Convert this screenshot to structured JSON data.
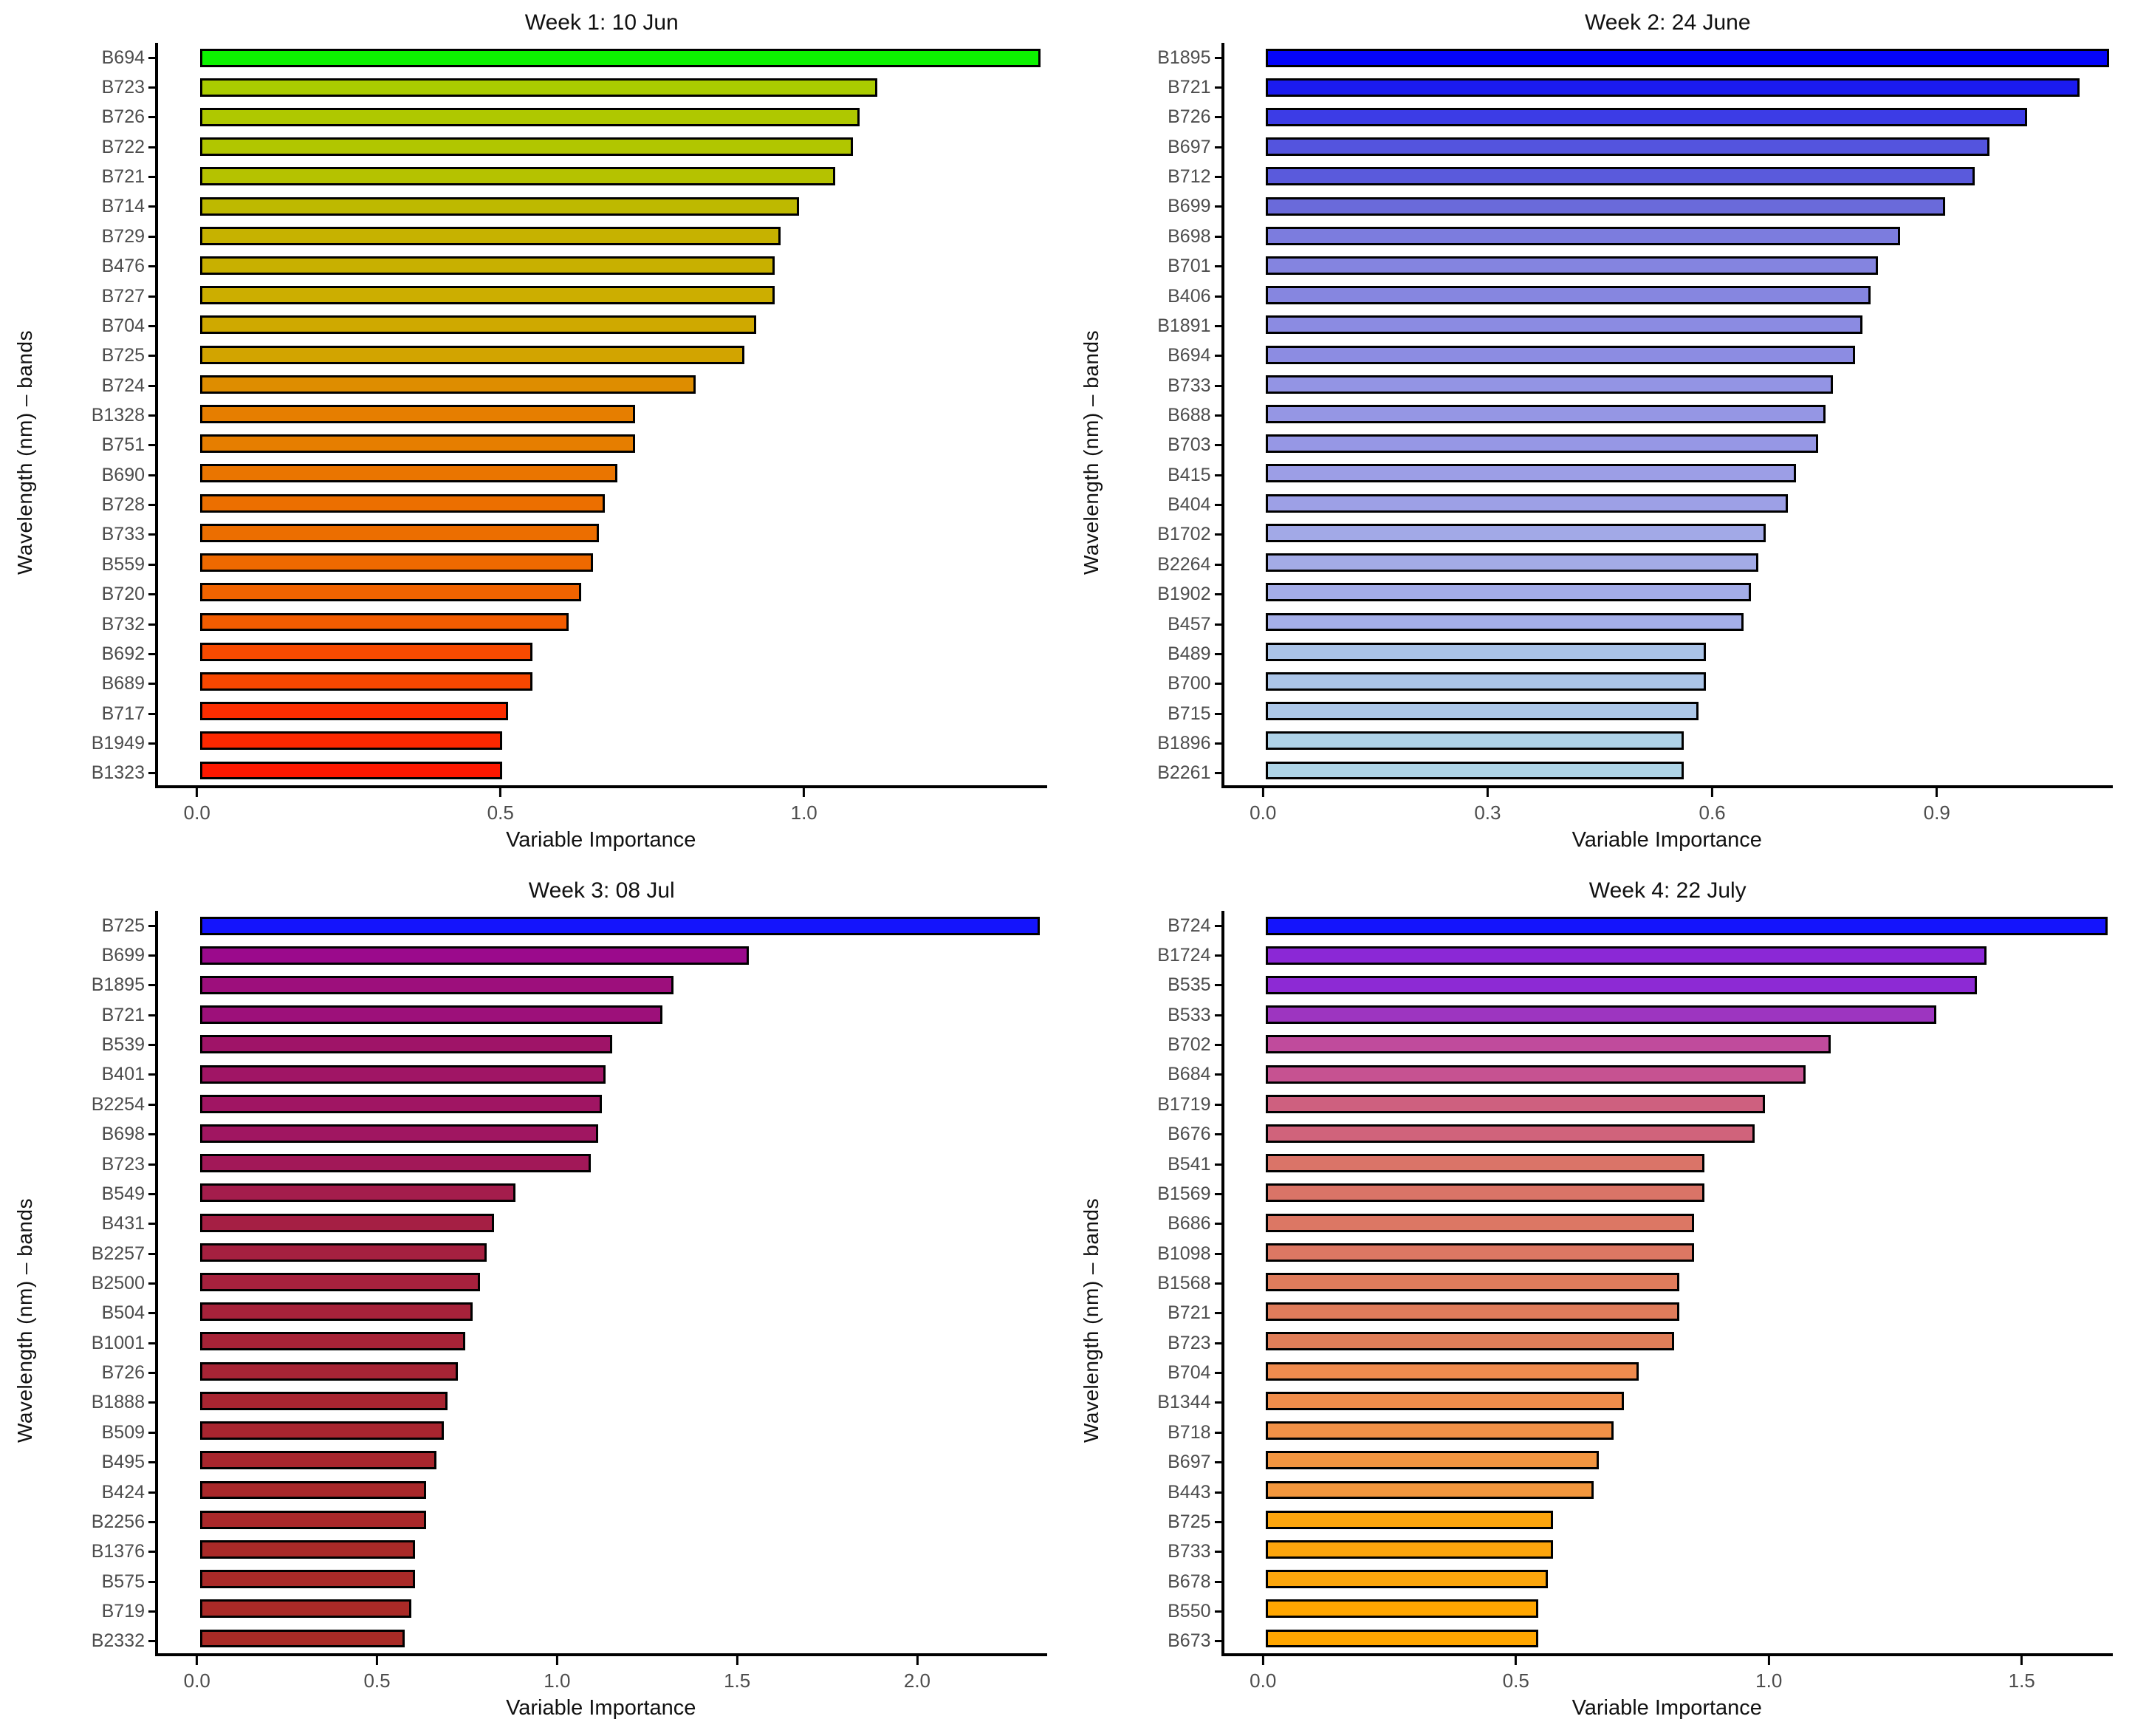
{
  "figure": {
    "x_axis_title": "Variable Importance",
    "y_axis_title": "Wavelength (nm) – bands",
    "background": "#ffffff",
    "axis_color": "#000000",
    "label_color": "#4d4d4d"
  },
  "chart_data": [
    {
      "type": "bar",
      "orientation": "horizontal",
      "title": "Week 1: 10 Jun",
      "xlabel": "Variable Importance",
      "ylabel": "Wavelength (nm) – bands",
      "grid": false,
      "legend": false,
      "xlim": [
        0,
        1.4
      ],
      "xticks": [
        0.0,
        0.5,
        1.0
      ],
      "xtick_labels": [
        "0.0",
        "0.5",
        "1.0"
      ],
      "categories": [
        "B694",
        "B723",
        "B726",
        "B722",
        "B721",
        "B714",
        "B729",
        "B476",
        "B727",
        "B704",
        "B725",
        "B724",
        "B1328",
        "B751",
        "B690",
        "B728",
        "B733",
        "B559",
        "B720",
        "B732",
        "B692",
        "B689",
        "B717",
        "B1949",
        "B1323"
      ],
      "values": [
        1.39,
        1.12,
        1.09,
        1.08,
        1.05,
        0.99,
        0.96,
        0.95,
        0.95,
        0.92,
        0.9,
        0.82,
        0.72,
        0.72,
        0.69,
        0.67,
        0.66,
        0.65,
        0.63,
        0.61,
        0.55,
        0.55,
        0.51,
        0.5,
        0.5
      ],
      "colors": [
        "#0DF200",
        "#AACC00",
        "#AFC800",
        "#B1C600",
        "#B5C200",
        "#BEB900",
        "#C6B200",
        "#C8B000",
        "#CCAE00",
        "#CFA900",
        "#D2A400",
        "#DE8D00",
        "#E67E00",
        "#E67E00",
        "#EA7500",
        "#EC6F00",
        "#EC6E00",
        "#EE6900",
        "#F06300",
        "#F25C00",
        "#F74A00",
        "#F84700",
        "#FB2D00",
        "#FC2800",
        "#FE1800"
      ]
    },
    {
      "type": "bar",
      "orientation": "horizontal",
      "title": "Week 2: 24 June",
      "xlabel": "Variable Importance",
      "ylabel": "Wavelength (nm) – bands",
      "grid": false,
      "legend": false,
      "xlim": [
        0,
        1.135
      ],
      "xticks": [
        0.0,
        0.3,
        0.6,
        0.9
      ],
      "xtick_labels": [
        "0.0",
        "0.3",
        "0.6",
        "0.9"
      ],
      "categories": [
        "B1895",
        "B721",
        "B726",
        "B697",
        "B712",
        "B699",
        "B698",
        "B701",
        "B406",
        "B1891",
        "B694",
        "B733",
        "B688",
        "B703",
        "B415",
        "B404",
        "B1702",
        "B2264",
        "B1902",
        "B457",
        "B489",
        "B700",
        "B715",
        "B1896",
        "B2261"
      ],
      "values": [
        1.13,
        1.09,
        1.02,
        0.97,
        0.95,
        0.91,
        0.85,
        0.82,
        0.81,
        0.8,
        0.79,
        0.76,
        0.75,
        0.74,
        0.71,
        0.7,
        0.67,
        0.66,
        0.65,
        0.64,
        0.59,
        0.59,
        0.58,
        0.56,
        0.56
      ],
      "colors": [
        "#0505FA",
        "#1B1BF0",
        "#3C3CE6",
        "#5454DE",
        "#5A5ADC",
        "#6A6ADA",
        "#7C7CDE",
        "#8484E0",
        "#8686E0",
        "#8B8BE2",
        "#8C8CE2",
        "#9394E4",
        "#9596E4",
        "#9697E5",
        "#9C9EE6",
        "#9DA0E6",
        "#A2A9E7",
        "#A3ABE7",
        "#A4ADE8",
        "#A5AFE8",
        "#ABC4E8",
        "#ABC5E8",
        "#ACC7E8",
        "#AED2E7",
        "#AED4E6"
      ]
    },
    {
      "type": "bar",
      "orientation": "horizontal",
      "title": "Week 3: 08 Jul",
      "xlabel": "Variable Importance",
      "ylabel": "Wavelength (nm) – bands",
      "grid": false,
      "legend": false,
      "xlim": [
        0,
        2.36
      ],
      "xticks": [
        0.0,
        0.5,
        1.0,
        1.5,
        2.0
      ],
      "xtick_labels": [
        "0.0",
        "0.5",
        "1.0",
        "1.5",
        "2.0"
      ],
      "categories": [
        "B725",
        "B699",
        "B1895",
        "B721",
        "B539",
        "B401",
        "B2254",
        "B698",
        "B723",
        "B549",
        "B431",
        "B2257",
        "B2500",
        "B504",
        "B1001",
        "B726",
        "B1888",
        "B509",
        "B495",
        "B424",
        "B2256",
        "B1376",
        "B575",
        "B719",
        "B2332"
      ],
      "values": [
        2.34,
        1.53,
        1.32,
        1.29,
        1.15,
        1.13,
        1.12,
        1.11,
        1.09,
        0.88,
        0.82,
        0.8,
        0.78,
        0.76,
        0.74,
        0.72,
        0.69,
        0.68,
        0.66,
        0.63,
        0.63,
        0.6,
        0.6,
        0.59,
        0.57
      ],
      "colors": [
        "#1414FC",
        "#9B0A8C",
        "#9D0F7C",
        "#9D107A",
        "#9F1468",
        "#A01565",
        "#A01563",
        "#A01661",
        "#A21858",
        "#A41D4C",
        "#A51F44",
        "#A52040",
        "#A6213D",
        "#A6223A",
        "#A72337",
        "#A72435",
        "#A82531",
        "#A8252F",
        "#A8262D",
        "#A9282A",
        "#A9282A",
        "#A92A28",
        "#A92A28",
        "#AA2A27",
        "#AA2B26"
      ]
    },
    {
      "type": "bar",
      "orientation": "horizontal",
      "title": "Week 4: 22 July",
      "xlabel": "Variable Importance",
      "ylabel": "Wavelength (nm) – bands",
      "grid": false,
      "legend": false,
      "xlim": [
        0,
        1.68
      ],
      "xticks": [
        0.0,
        0.5,
        1.0,
        1.5
      ],
      "xtick_labels": [
        "0.0",
        "0.5",
        "1.0",
        "1.5"
      ],
      "categories": [
        "B724",
        "B1724",
        "B535",
        "B533",
        "B702",
        "B684",
        "B1719",
        "B676",
        "B541",
        "B1569",
        "B686",
        "B1098",
        "B1568",
        "B721",
        "B723",
        "B704",
        "B1344",
        "B718",
        "B697",
        "B443",
        "B725",
        "B733",
        "B678",
        "B550",
        "B673"
      ],
      "values": [
        1.67,
        1.43,
        1.41,
        1.33,
        1.12,
        1.07,
        0.99,
        0.97,
        0.87,
        0.87,
        0.85,
        0.85,
        0.82,
        0.82,
        0.81,
        0.74,
        0.71,
        0.69,
        0.66,
        0.65,
        0.57,
        0.57,
        0.56,
        0.54,
        0.54
      ],
      "colors": [
        "#1414FC",
        "#8B28D6",
        "#8D2AD4",
        "#9D35C0",
        "#C04B9C",
        "#C65291",
        "#CE607F",
        "#D0637B",
        "#DA7468",
        "#DA7467",
        "#DC7764",
        "#DC7763",
        "#DF7C5C",
        "#DF7C5B",
        "#E07E58",
        "#EF8B4E",
        "#F08D4B",
        "#F19147",
        "#F29540",
        "#F3973D",
        "#FCA50E",
        "#FCA50D",
        "#FCA60C",
        "#FFA600",
        "#FFA600"
      ]
    }
  ]
}
